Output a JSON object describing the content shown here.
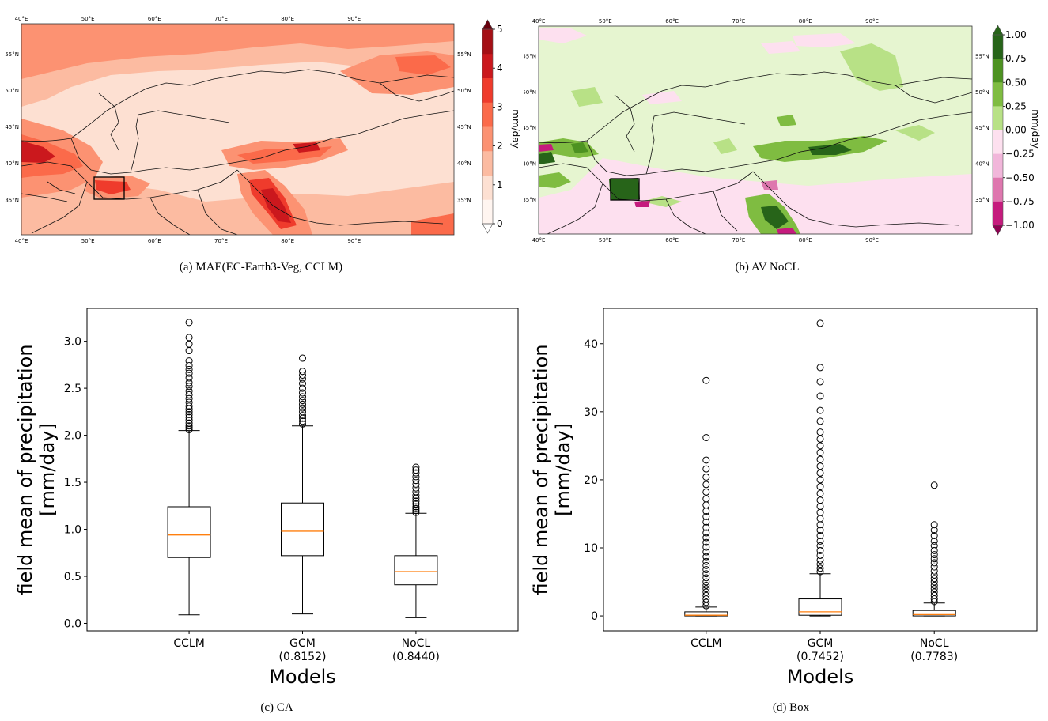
{
  "captions": {
    "a": "(a) MAE(EC-Earth3-Veg, CCLM)",
    "b": "(b) AV NoCL",
    "c": "(c) CA",
    "d": "(d) Box"
  },
  "map_a": {
    "lon_ticks": [
      "40°E",
      "50°E",
      "60°E",
      "70°E",
      "80°E",
      "90°E"
    ],
    "lat_ticks": [
      "55°N",
      "50°N",
      "45°N",
      "40°N",
      "35°N"
    ],
    "colorbar_label": "mm/day",
    "colorbar_ticks": [
      "5",
      "4",
      "3",
      "2",
      "1",
      "0"
    ],
    "colors": [
      "#fff5f0",
      "#fde0d2",
      "#fcbba1",
      "#fc9272",
      "#fb6a4a",
      "#ef3b2c",
      "#cb181d",
      "#a50f15",
      "#67000d"
    ]
  },
  "map_b": {
    "lon_ticks": [
      "40°E",
      "50°E",
      "60°E",
      "70°E",
      "80°E",
      "90°E"
    ],
    "lat_ticks": [
      "55°N",
      "50°N",
      "45°N",
      "40°N",
      "35°N"
    ],
    "colorbar_label": "mm/day",
    "colorbar_ticks": [
      "1.00",
      "0.75",
      "0.50",
      "0.25",
      "0.00",
      "−0.25",
      "−0.50",
      "−0.75",
      "−1.00"
    ],
    "colors": [
      "#276419",
      "#4d9221",
      "#7fbc41",
      "#b8e186",
      "#e6f5d0",
      "#fde0ef",
      "#f1b6da",
      "#de77ae",
      "#c51b7d",
      "#8e0152"
    ]
  },
  "chart_data": [
    {
      "type": "box",
      "panel": "c",
      "categories": [
        "CCLM",
        "GCM",
        "NoCL"
      ],
      "sublabels": [
        "",
        "(0.8152)",
        "(0.8440)"
      ],
      "xlabel": "Models",
      "ylabel": "field mean of precipitation\n[mm/day]",
      "ylim": [
        -0.08,
        3.35
      ],
      "yticks": [
        0.0,
        0.5,
        1.0,
        1.5,
        2.0,
        2.5,
        3.0
      ],
      "ytick_labels": [
        "0.0",
        "0.5",
        "1.0",
        "1.5",
        "2.0",
        "2.5",
        "3.0"
      ],
      "boxes": [
        {
          "whislo": 0.09,
          "q1": 0.7,
          "med": 0.94,
          "q3": 1.24,
          "whishi": 2.05,
          "fliers": [
            2.06,
            2.08,
            2.1,
            2.13,
            2.16,
            2.19,
            2.22,
            2.25,
            2.28,
            2.31,
            2.35,
            2.39,
            2.43,
            2.47,
            2.52,
            2.56,
            2.61,
            2.66,
            2.7,
            2.74,
            2.79,
            2.9,
            2.97,
            3.04,
            3.2
          ]
        },
        {
          "whislo": 0.1,
          "q1": 0.72,
          "med": 0.98,
          "q3": 1.28,
          "whishi": 2.1,
          "fliers": [
            2.12,
            2.15,
            2.18,
            2.21,
            2.25,
            2.29,
            2.33,
            2.37,
            2.41,
            2.45,
            2.5,
            2.55,
            2.6,
            2.64,
            2.68,
            2.82
          ]
        },
        {
          "whislo": 0.06,
          "q1": 0.41,
          "med": 0.55,
          "q3": 0.72,
          "whishi": 1.17,
          "fliers": [
            1.18,
            1.2,
            1.22,
            1.24,
            1.27,
            1.3,
            1.33,
            1.36,
            1.4,
            1.44,
            1.48,
            1.52,
            1.56,
            1.6,
            1.63,
            1.66
          ]
        }
      ]
    },
    {
      "type": "box",
      "panel": "d",
      "categories": [
        "CCLM",
        "GCM",
        "NoCL"
      ],
      "sublabels": [
        "",
        "(0.7452)",
        "(0.7783)"
      ],
      "xlabel": "Models",
      "ylabel": "field mean of precipitation\n[mm/day]",
      "ylim": [
        -2.2,
        45.2
      ],
      "yticks": [
        0,
        10,
        20,
        30,
        40
      ],
      "ytick_labels": [
        "0",
        "10",
        "20",
        "30",
        "40"
      ],
      "boxes": [
        {
          "whislo": 0.0,
          "q1": 0.0,
          "med": 0.1,
          "q3": 0.6,
          "whishi": 1.3,
          "fliers": [
            1.5,
            2.0,
            2.5,
            3.0,
            3.5,
            4.0,
            4.5,
            5.0,
            5.6,
            6.2,
            6.8,
            7.4,
            8.0,
            8.7,
            9.4,
            10.1,
            10.8,
            11.5,
            12.2,
            13.0,
            13.8,
            14.6,
            15.4,
            16.3,
            17.2,
            18.2,
            19.3,
            20.4,
            21.6,
            22.9,
            26.2,
            34.6
          ]
        },
        {
          "whislo": 0.0,
          "q1": 0.1,
          "med": 0.6,
          "q3": 2.5,
          "whishi": 6.2,
          "fliers": [
            6.5,
            7.0,
            7.6,
            8.2,
            8.9,
            9.6,
            10.3,
            11.0,
            11.8,
            12.6,
            13.4,
            14.3,
            15.2,
            16.1,
            17.0,
            18.0,
            19.0,
            20.0,
            21.0,
            22.0,
            23.0,
            24.0,
            25.0,
            26.0,
            27.0,
            28.6,
            30.2,
            32.3,
            34.4,
            36.5,
            43.0
          ]
        },
        {
          "whislo": 0.0,
          "q1": 0.0,
          "med": 0.2,
          "q3": 0.8,
          "whishi": 1.9,
          "fliers": [
            2.1,
            2.5,
            3.0,
            3.5,
            4.0,
            4.5,
            5.0,
            5.5,
            6.0,
            6.6,
            7.2,
            7.8,
            8.4,
            9.0,
            9.6,
            10.3,
            11.0,
            11.8,
            12.6,
            13.4,
            19.2
          ]
        }
      ]
    }
  ]
}
